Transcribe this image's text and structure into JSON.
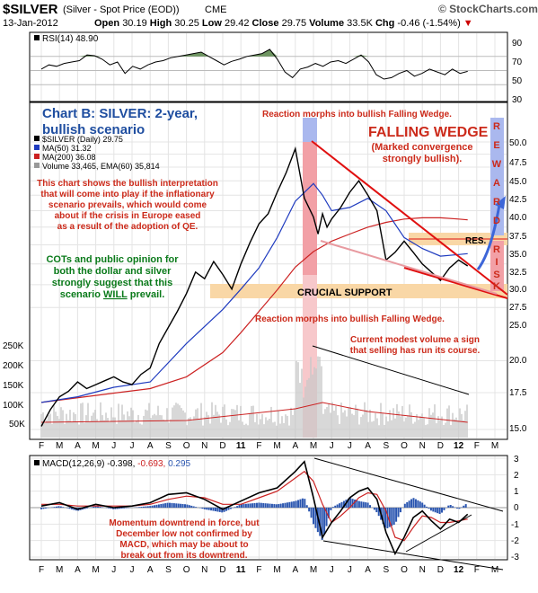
{
  "header": {
    "symbol": "$SILVER",
    "name": "(Silver - Spot Price (EOD))",
    "exchange": "CME",
    "date": "13-Jan-2012",
    "brand": "© StockCharts.com",
    "stats": {
      "open_label": "Open",
      "open": "30.19",
      "high_label": "High",
      "high": "30.25",
      "low_label": "Low",
      "low": "29.42",
      "close_label": "Close",
      "close": "29.75",
      "volume_label": "Volume",
      "volume": "33.5K",
      "chg_label": "Chg",
      "chg": "-0.46 (-1.54%)"
    }
  },
  "colors": {
    "price": "#000000",
    "ma50": "#1f3bbf",
    "ma200": "#cc2222",
    "macd_signal": "#cc2222",
    "histogram": "#2b56b0",
    "volume": "#c8c8c8",
    "rsi_fill": "#4a7a3a",
    "annotation_red": "#cc2a1a",
    "annotation_blue": "#1f4ea0",
    "annotation_green": "#0a7a1a",
    "support_band": "#f9d7a6",
    "pink_band": "#f2a0a6",
    "blue_band": "#aab8ee"
  },
  "rsi_panel": {
    "label": "RSI(14) 48.90",
    "ticks": [
      "90",
      "70",
      "50",
      "30",
      "10"
    ]
  },
  "price_panel": {
    "legend": [
      "$SILVER (Daily) 29.75",
      "MA(50) 31.32",
      "MA(200) 36.08",
      "Volume 33,465, EMA(60) 35,814"
    ],
    "yticks": [
      "50.0",
      "47.5",
      "45.0",
      "42.5",
      "40.0",
      "37.5",
      "35.0",
      "32.5",
      "30.0",
      "27.5",
      "25.0",
      "20.0",
      "17.5",
      "15.0"
    ],
    "vol_ticks": [
      "250K",
      "200K",
      "150K",
      "100K",
      "50K"
    ],
    "title_line1": "Chart B: SILVER: 2-year,",
    "title_line2": "bullish scenario",
    "text_bullish": [
      "This chart shows the bullish interpretation",
      "that will come into play if the inflationary",
      "scenario prevails, which would come",
      "about if the crisis in Europe eased",
      "as a result of the adoption of QE."
    ],
    "text_cots_1": "COTs and public opinion for",
    "text_cots_2": "both the dollar and silver",
    "text_cots_3": "strongly suggest that this",
    "text_cots_4a": "scenario ",
    "text_cots_4b": "WILL",
    "text_cots_4c": " prevail.",
    "text_reaction_top": "Reaction morphs into bullish Falling Wedge.",
    "text_wedge": "FALLING WEDGE",
    "text_convergence_1": "(Marked convergence",
    "text_convergence_2": "strongly bullish).",
    "text_res": "RES.",
    "text_support": "CRUCIAL SUPPORT",
    "text_reaction_bottom": "Reaction morphs into bullish Falling Wedge.",
    "text_volume_1": "Current modest volume a sign",
    "text_volume_2": "that selling has run its course.",
    "reward_letters": [
      "R",
      "E",
      "W",
      "A",
      "R",
      "D"
    ],
    "risk_letters": [
      "R",
      "I",
      "S",
      "K"
    ]
  },
  "macd_panel": {
    "label_name": "MACD(12,26,9)",
    "label_macd": "-0.398,",
    "label_signal": "-0.693,",
    "label_hist": "0.295",
    "ticks": [
      "3",
      "2",
      "1",
      "0",
      "-1",
      "-2",
      "-3"
    ],
    "text_1": "Momentum downtrend in force, but",
    "text_2": "December low not confirmed by",
    "text_3": "MACD, which may be about to",
    "text_4": "break out from its downtrend."
  },
  "x_axis": {
    "months": [
      "F",
      "M",
      "A",
      "M",
      "J",
      "J",
      "A",
      "S",
      "O",
      "N",
      "D",
      "11",
      "F",
      "M",
      "A",
      "M",
      "J",
      "J",
      "A",
      "S",
      "O",
      "N",
      "D",
      "12",
      "F",
      "M"
    ]
  },
  "chart_data": {
    "type": "line",
    "title": "$SILVER (Silver - Spot Price (EOD)) CME",
    "x_unit": "months from Feb 2010",
    "price": {
      "x": [
        0,
        0.5,
        1,
        1.5,
        2,
        2.5,
        3,
        3.5,
        4,
        4.5,
        5,
        5.5,
        6,
        6.5,
        7,
        7.5,
        8,
        8.5,
        9,
        9.5,
        10,
        10.5,
        11,
        11.5,
        12,
        12.5,
        13,
        13.5,
        14,
        14.5,
        15,
        15.25,
        15.5,
        15.75,
        16,
        16.5,
        17,
        17.5,
        18,
        18.5,
        19,
        19.5,
        20,
        20.5,
        21,
        21.5,
        22,
        22.5,
        23,
        23.5
      ],
      "y": [
        15.2,
        16.3,
        17.2,
        17.6,
        18.3,
        17.8,
        18.1,
        18.4,
        18.7,
        18.3,
        18.1,
        18.9,
        19.4,
        21.5,
        23.0,
        24.6,
        26.5,
        29.0,
        28.2,
        30.3,
        28.7,
        27.0,
        30.0,
        32.8,
        35.5,
        37.0,
        40.5,
        44.0,
        48.6,
        39.5,
        36.5,
        34.0,
        37.0,
        35.0,
        36.2,
        38.0,
        40.5,
        42.5,
        40.0,
        37.5,
        30.5,
        31.5,
        33.0,
        31.5,
        30.0,
        29.0,
        28.0,
        29.5,
        30.5,
        29.75
      ]
    },
    "ma50": {
      "x": [
        0,
        2,
        4,
        6,
        8,
        10,
        11,
        12,
        13,
        14,
        15,
        15.5,
        16,
        17,
        18,
        19,
        20,
        21,
        22,
        23,
        23.5
      ],
      "y": [
        16.8,
        17.2,
        17.9,
        18.3,
        21.5,
        24.8,
        27.0,
        29.5,
        33.5,
        39.0,
        42.0,
        40.0,
        37.5,
        38.0,
        39.5,
        37.5,
        33.5,
        32.0,
        31.0,
        31.2,
        31.32
      ]
    },
    "ma200": {
      "x": [
        0,
        3,
        6,
        8,
        10,
        11,
        12,
        13,
        14,
        15,
        16,
        17,
        18,
        19,
        20,
        21,
        22,
        23,
        23.5
      ],
      "y": [
        16.8,
        17.3,
        17.8,
        18.7,
        20.7,
        22.5,
        24.6,
        26.9,
        29.6,
        31.6,
        33.0,
        34.0,
        35.0,
        35.7,
        36.2,
        36.4,
        36.4,
        36.2,
        36.08
      ]
    },
    "volume_scale": [
      0,
      250000
    ],
    "rsi": {
      "range": [
        10,
        90
      ],
      "values": [
        52,
        58,
        56,
        60,
        62,
        64,
        72,
        71,
        66,
        58,
        62,
        46,
        56,
        52,
        58,
        62,
        64,
        68,
        70,
        72,
        74,
        76,
        70,
        64,
        58,
        63,
        66,
        70,
        72,
        74,
        80,
        66,
        48,
        40,
        52,
        55,
        60,
        56,
        62,
        64,
        60,
        66,
        72,
        62,
        44,
        38,
        40,
        46,
        50,
        42,
        46,
        52,
        48,
        44,
        52,
        46,
        48.9
      ]
    },
    "macd": {
      "range": [
        -3,
        3
      ],
      "x": [
        0,
        1,
        2,
        3,
        4,
        5,
        6,
        7,
        8,
        9,
        10,
        11,
        12,
        13,
        14,
        14.5,
        15,
        15.5,
        16,
        16.5,
        17,
        17.5,
        18,
        18.5,
        19,
        19.5,
        20,
        20.5,
        21,
        21.5,
        22,
        22.5,
        23,
        23.5
      ],
      "macd": [
        0.1,
        0.3,
        -0.1,
        0.2,
        0.0,
        0.1,
        0.3,
        0.8,
        0.9,
        0.5,
        -0.1,
        0.4,
        0.9,
        1.2,
        2.2,
        2.8,
        0.6,
        -1.8,
        -0.9,
        -0.2,
        0.6,
        1.0,
        1.2,
        0.5,
        -1.5,
        -2.8,
        -1.8,
        -0.6,
        -0.2,
        -0.8,
        -1.3,
        -0.7,
        -0.9,
        -0.4
      ],
      "signal": [
        0.2,
        0.2,
        0.1,
        0.1,
        0.1,
        0.1,
        0.2,
        0.5,
        0.7,
        0.6,
        0.2,
        0.2,
        0.6,
        1.0,
        1.8,
        2.2,
        1.6,
        0.2,
        -0.9,
        -0.5,
        0.0,
        0.6,
        0.9,
        0.8,
        -0.2,
        -1.8,
        -2.0,
        -1.2,
        -0.5,
        -0.6,
        -0.9,
        -0.9,
        -0.8,
        -0.693
      ]
    }
  }
}
